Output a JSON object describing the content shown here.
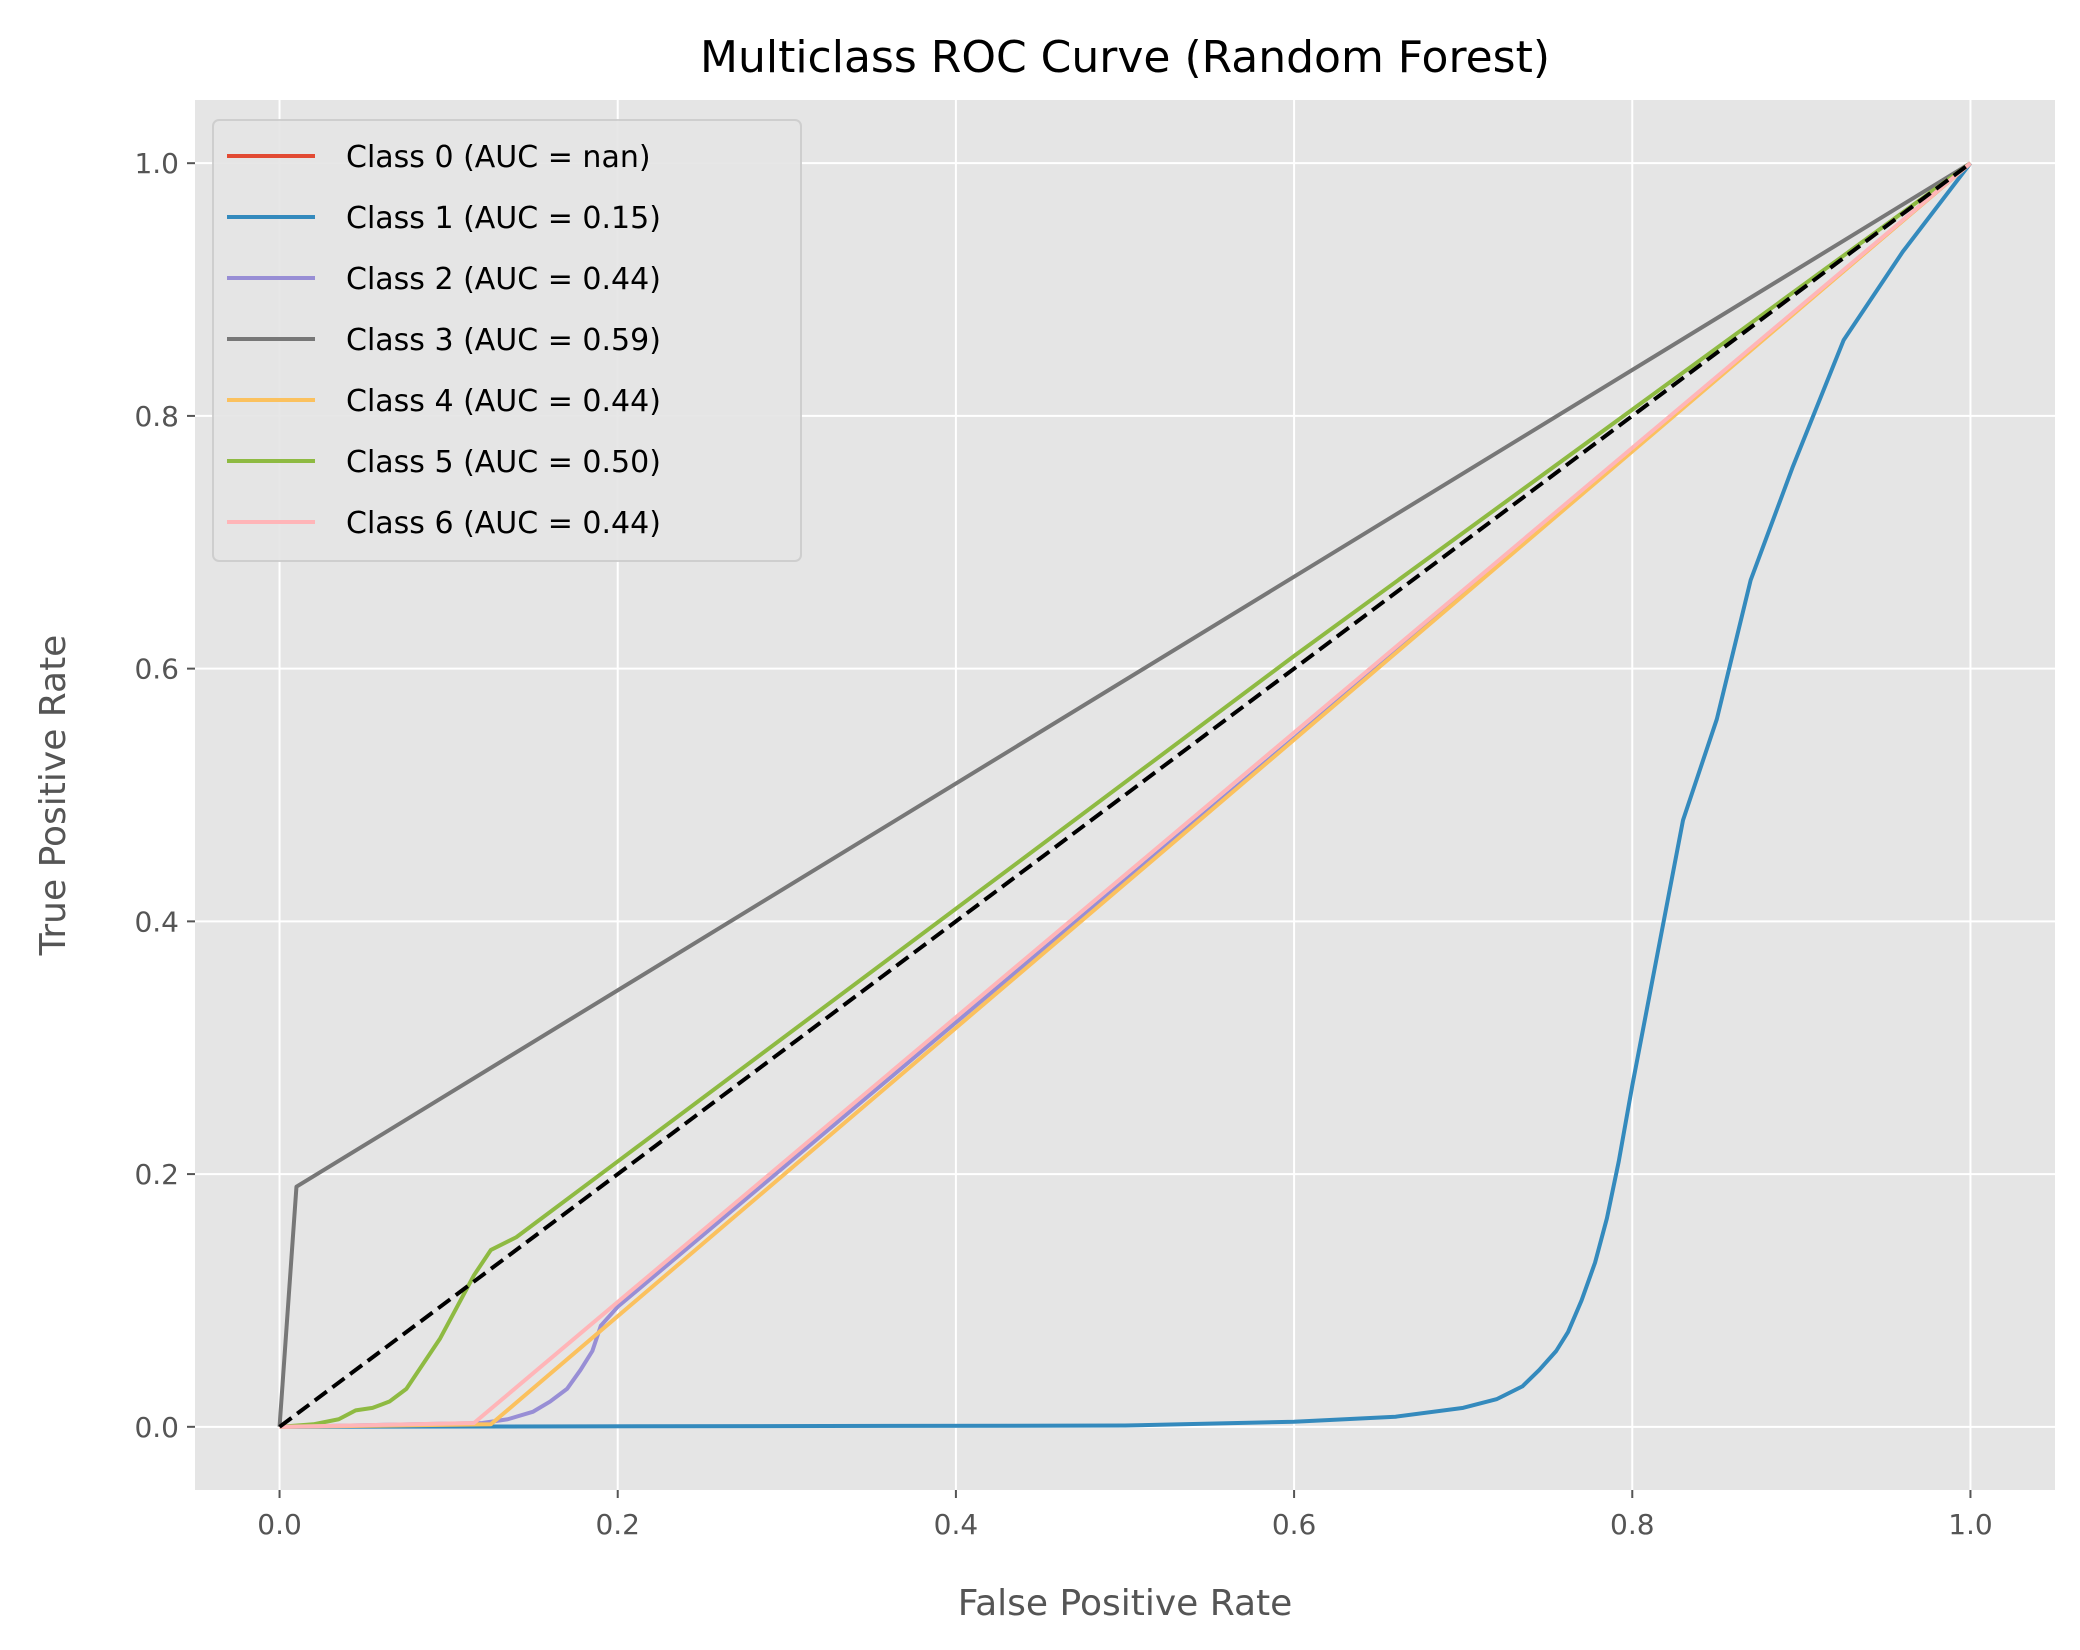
{
  "chart_data": {
    "type": "line",
    "title": "Multiclass ROC Curve (Random Forest)",
    "xlabel": "False Positive Rate",
    "ylabel": "True Positive Rate",
    "xlim": [
      -0.05,
      1.05
    ],
    "ylim": [
      -0.05,
      1.05
    ],
    "xticks": [
      "0.0",
      "0.2",
      "0.4",
      "0.6",
      "0.8",
      "1.0"
    ],
    "yticks": [
      "0.0",
      "0.2",
      "0.4",
      "0.6",
      "0.8",
      "1.0"
    ],
    "xtick_values": [
      0.0,
      0.2,
      0.4,
      0.6,
      0.8,
      1.0
    ],
    "ytick_values": [
      0.0,
      0.2,
      0.4,
      0.6,
      0.8,
      1.0
    ],
    "grid": true,
    "legend_position": "top-left",
    "background_color": "#e5e5e5",
    "series": [
      {
        "name": "Class 0 (AUC = nan)",
        "color": "#e24a33",
        "points": []
      },
      {
        "name": "Class 1 (AUC = 0.15)",
        "color": "#348abd",
        "points": [
          [
            0,
            0
          ],
          [
            0.5,
            0.001
          ],
          [
            0.6,
            0.004
          ],
          [
            0.66,
            0.008
          ],
          [
            0.7,
            0.015
          ],
          [
            0.72,
            0.022
          ],
          [
            0.735,
            0.032
          ],
          [
            0.745,
            0.045
          ],
          [
            0.755,
            0.06
          ],
          [
            0.762,
            0.075
          ],
          [
            0.77,
            0.1
          ],
          [
            0.778,
            0.13
          ],
          [
            0.785,
            0.165
          ],
          [
            0.792,
            0.21
          ],
          [
            0.8,
            0.27
          ],
          [
            0.81,
            0.34
          ],
          [
            0.82,
            0.41
          ],
          [
            0.83,
            0.48
          ],
          [
            0.85,
            0.56
          ],
          [
            0.87,
            0.67
          ],
          [
            0.895,
            0.76
          ],
          [
            0.925,
            0.86
          ],
          [
            0.96,
            0.93
          ],
          [
            1.0,
            1.0
          ]
        ]
      },
      {
        "name": "Class 2 (AUC = 0.44)",
        "color": "#988ed5",
        "points": [
          [
            0,
            0
          ],
          [
            0.12,
            0.003
          ],
          [
            0.135,
            0.006
          ],
          [
            0.15,
            0.012
          ],
          [
            0.16,
            0.02
          ],
          [
            0.17,
            0.03
          ],
          [
            0.178,
            0.045
          ],
          [
            0.185,
            0.06
          ],
          [
            0.19,
            0.08
          ],
          [
            0.2,
            0.095
          ],
          [
            0.6,
            0.545
          ],
          [
            1.0,
            1.0
          ]
        ]
      },
      {
        "name": "Class 3 (AUC = 0.59)",
        "color": "#777777",
        "points": [
          [
            0,
            0
          ],
          [
            0.01,
            0.19
          ],
          [
            1.0,
            1.0
          ]
        ]
      },
      {
        "name": "Class 4 (AUC = 0.44)",
        "color": "#fbc15e",
        "points": [
          [
            0,
            0
          ],
          [
            0.125,
            0.002
          ],
          [
            1.0,
            1.0
          ]
        ]
      },
      {
        "name": "Class 5 (AUC = 0.50)",
        "color": "#8eba42",
        "points": [
          [
            0,
            0
          ],
          [
            0.02,
            0.002
          ],
          [
            0.035,
            0.006
          ],
          [
            0.045,
            0.013
          ],
          [
            0.055,
            0.015
          ],
          [
            0.065,
            0.02
          ],
          [
            0.075,
            0.03
          ],
          [
            0.085,
            0.05
          ],
          [
            0.095,
            0.07
          ],
          [
            0.105,
            0.095
          ],
          [
            0.115,
            0.12
          ],
          [
            0.125,
            0.14
          ],
          [
            0.14,
            0.15
          ],
          [
            0.2,
            0.21
          ],
          [
            0.6,
            0.61
          ],
          [
            1.0,
            1.0
          ]
        ]
      },
      {
        "name": "Class 6 (AUC = 0.44)",
        "color": "#ffb5b8",
        "points": [
          [
            0,
            0
          ],
          [
            0.115,
            0.003
          ],
          [
            1.0,
            1.0
          ]
        ]
      }
    ],
    "reference_line": {
      "color": "#000000",
      "style": "dashed",
      "points": [
        [
          0,
          0
        ],
        [
          1,
          1
        ]
      ]
    }
  }
}
